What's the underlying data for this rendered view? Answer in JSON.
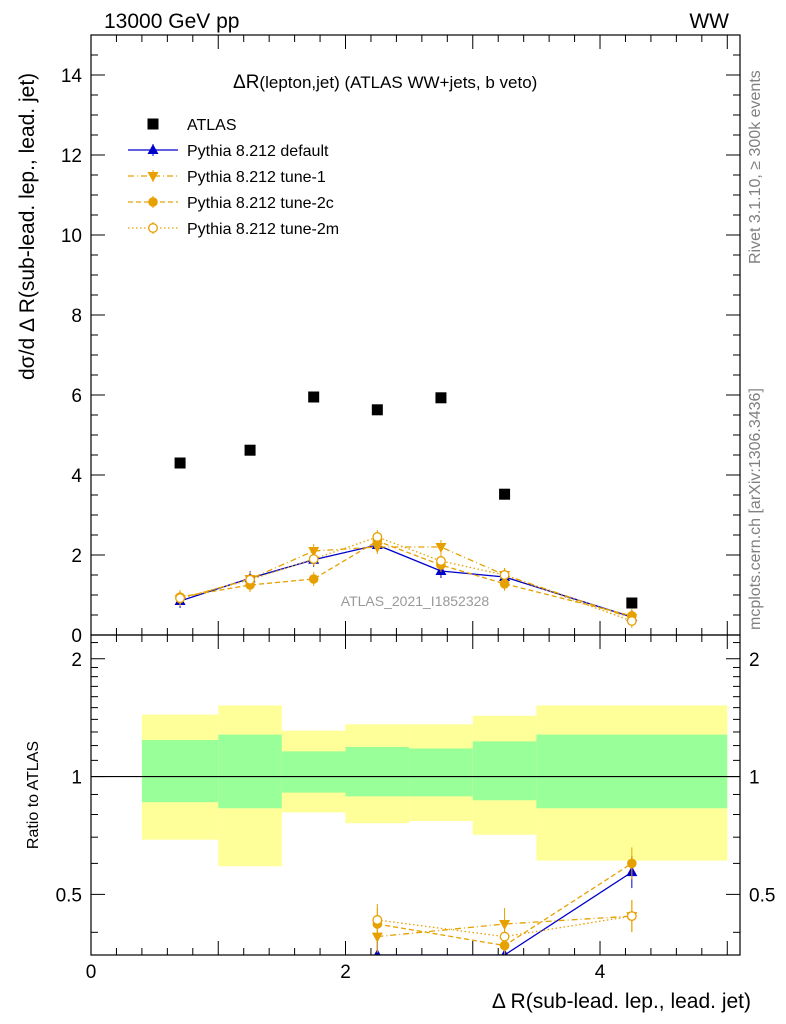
{
  "header": {
    "left": "13000 GeV pp",
    "right": "WW"
  },
  "side_labels": {
    "rivet": "Rivet 3.1.10, ≥ 300k events",
    "mcplots": "mcplots.cern.ch [arXiv:1306.3436]"
  },
  "colors": {
    "atlas": "#000000",
    "default": "#0000cc",
    "tunes": "#e6a100",
    "band_inner": "#99ff99",
    "band_outer": "#ffff99"
  },
  "chart_data": [
    {
      "type": "scatter",
      "title_main": "ΔR",
      "title_sub": "(lepton,jet)",
      "title_rest": " (ATLAS WW+jets, b veto)",
      "xlabel": "",
      "ylabel": "dσ/d Δ R(sub-lead. lep., lead. jet)",
      "analysis_id": "ATLAS_2021_I1852328",
      "xlim": [
        0,
        5.1
      ],
      "ylim": [
        0,
        15
      ],
      "x_tick_labels": [
        "0",
        "2",
        "4"
      ],
      "y_ticks": [
        0,
        2,
        4,
        6,
        8,
        10,
        12,
        14
      ],
      "y_tick_labels": [
        "0",
        "2",
        "4",
        "6",
        "8",
        "10",
        "12",
        "14"
      ],
      "legend_position": "top-left",
      "series": [
        {
          "name": "ATLAS",
          "key": "atlas",
          "marker": "square",
          "line": "none",
          "x": [
            0.7,
            1.25,
            1.75,
            2.25,
            2.75,
            3.25,
            4.25
          ],
          "y": [
            4.3,
            4.62,
            5.95,
            5.63,
            5.93,
            3.52,
            0.8
          ]
        },
        {
          "name": "Pythia 8.212 default",
          "key": "default",
          "marker": "triangle-up",
          "line": "solid",
          "x": [
            0.7,
            1.25,
            1.75,
            2.25,
            2.75,
            3.25,
            4.25
          ],
          "y": [
            0.85,
            1.42,
            1.88,
            2.25,
            1.6,
            1.45,
            0.45
          ]
        },
        {
          "name": "Pythia 8.212 tune-1",
          "key": "tune1",
          "marker": "triangle-down",
          "line": "dashdot",
          "x": [
            0.7,
            1.25,
            1.75,
            2.25,
            2.75,
            3.25,
            4.25
          ],
          "y": [
            0.9,
            1.4,
            2.1,
            2.2,
            2.2,
            1.5,
            0.42
          ]
        },
        {
          "name": "Pythia 8.212 tune-2c",
          "key": "tune2c",
          "marker": "circle",
          "line": "dashed",
          "x": [
            0.7,
            1.25,
            1.75,
            2.25,
            2.75,
            3.25,
            4.25
          ],
          "y": [
            0.95,
            1.25,
            1.4,
            2.35,
            1.75,
            1.28,
            0.48
          ]
        },
        {
          "name": "Pythia 8.212 tune-2m",
          "key": "tune2m",
          "marker": "open-circle",
          "line": "dotted",
          "x": [
            0.7,
            1.25,
            1.75,
            2.25,
            2.75,
            3.25,
            4.25
          ],
          "y": [
            0.92,
            1.38,
            1.9,
            2.45,
            1.85,
            1.5,
            0.35
          ]
        }
      ]
    },
    {
      "type": "scatter",
      "xlabel": "Δ R(sub-lead. lep., lead. jet)",
      "ylabel": "Ratio to ATLAS",
      "xlim": [
        0,
        5.1
      ],
      "ylim": [
        0.35,
        2.3
      ],
      "x_tick_labels": [
        "0",
        "2",
        "4"
      ],
      "y_ticks": [
        0.5,
        1,
        2
      ],
      "y_tick_labels": [
        "0.5",
        "1",
        "2"
      ],
      "reference_line": 1,
      "bands": [
        {
          "x0": 0.4,
          "x1": 1.0,
          "inner": [
            0.86,
            1.24
          ],
          "outer": [
            0.69,
            1.44
          ]
        },
        {
          "x0": 1.0,
          "x1": 1.5,
          "inner": [
            0.83,
            1.28
          ],
          "outer": [
            0.59,
            1.52
          ]
        },
        {
          "x0": 1.5,
          "x1": 2.0,
          "inner": [
            0.91,
            1.16
          ],
          "outer": [
            0.81,
            1.31
          ]
        },
        {
          "x0": 2.0,
          "x1": 2.5,
          "inner": [
            0.89,
            1.19
          ],
          "outer": [
            0.76,
            1.36
          ]
        },
        {
          "x0": 2.5,
          "x1": 3.0,
          "inner": [
            0.89,
            1.18
          ],
          "outer": [
            0.77,
            1.36
          ]
        },
        {
          "x0": 3.0,
          "x1": 3.5,
          "inner": [
            0.87,
            1.23
          ],
          "outer": [
            0.71,
            1.43
          ]
        },
        {
          "x0": 3.5,
          "x1": 5.0,
          "inner": [
            0.83,
            1.28
          ],
          "outer": [
            0.61,
            1.52
          ]
        }
      ],
      "series": [
        {
          "name": "Pythia 8.212 default",
          "key": "default",
          "x": [
            2.25,
            3.25,
            4.25
          ],
          "y": [
            0.35,
            0.35,
            0.57
          ]
        },
        {
          "name": "Pythia 8.212 tune-1",
          "key": "tune1",
          "x": [
            2.25,
            3.25,
            4.25
          ],
          "y": [
            0.39,
            0.42,
            0.44
          ]
        },
        {
          "name": "Pythia 8.212 tune-2c",
          "key": "tune2c",
          "x": [
            2.25,
            3.25,
            4.25
          ],
          "y": [
            0.42,
            0.37,
            0.6
          ]
        },
        {
          "name": "Pythia 8.212 tune-2m",
          "key": "tune2m",
          "x": [
            2.25,
            3.25,
            4.25
          ],
          "y": [
            0.43,
            0.39,
            0.44
          ]
        }
      ]
    }
  ]
}
